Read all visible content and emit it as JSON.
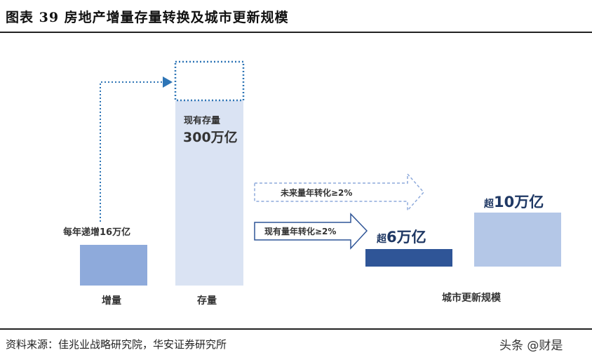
{
  "title": "图表  39  房地产增量存量转换及城市更新规模",
  "source": "资料来源：佳兆业战略研究院，华安证券研究所",
  "watermark": "头条 @财是",
  "labels": {
    "increment_annual": "每年递增16万亿",
    "stock_prefix": "现有存量",
    "stock_value": "300万亿",
    "future_arrow": "未来量年转化≥2%",
    "current_arrow": "现有量年转化≥2%",
    "over6_prefix": "超",
    "over6_value": "6万亿",
    "over10_prefix": "超",
    "over10_value": "10万亿",
    "x_increment": "增量",
    "x_stock": "存量",
    "x_urban": "城市更新规模"
  },
  "colors": {
    "increment_bar": "#8eaadb",
    "stock_bar": "#dae3f3",
    "dark_bar": "#2f5597",
    "light_bar": "#b4c7e7",
    "dotted": "#2e75b6",
    "arrow_current": "#2f5597",
    "arrow_future": "#8eaadb"
  }
}
